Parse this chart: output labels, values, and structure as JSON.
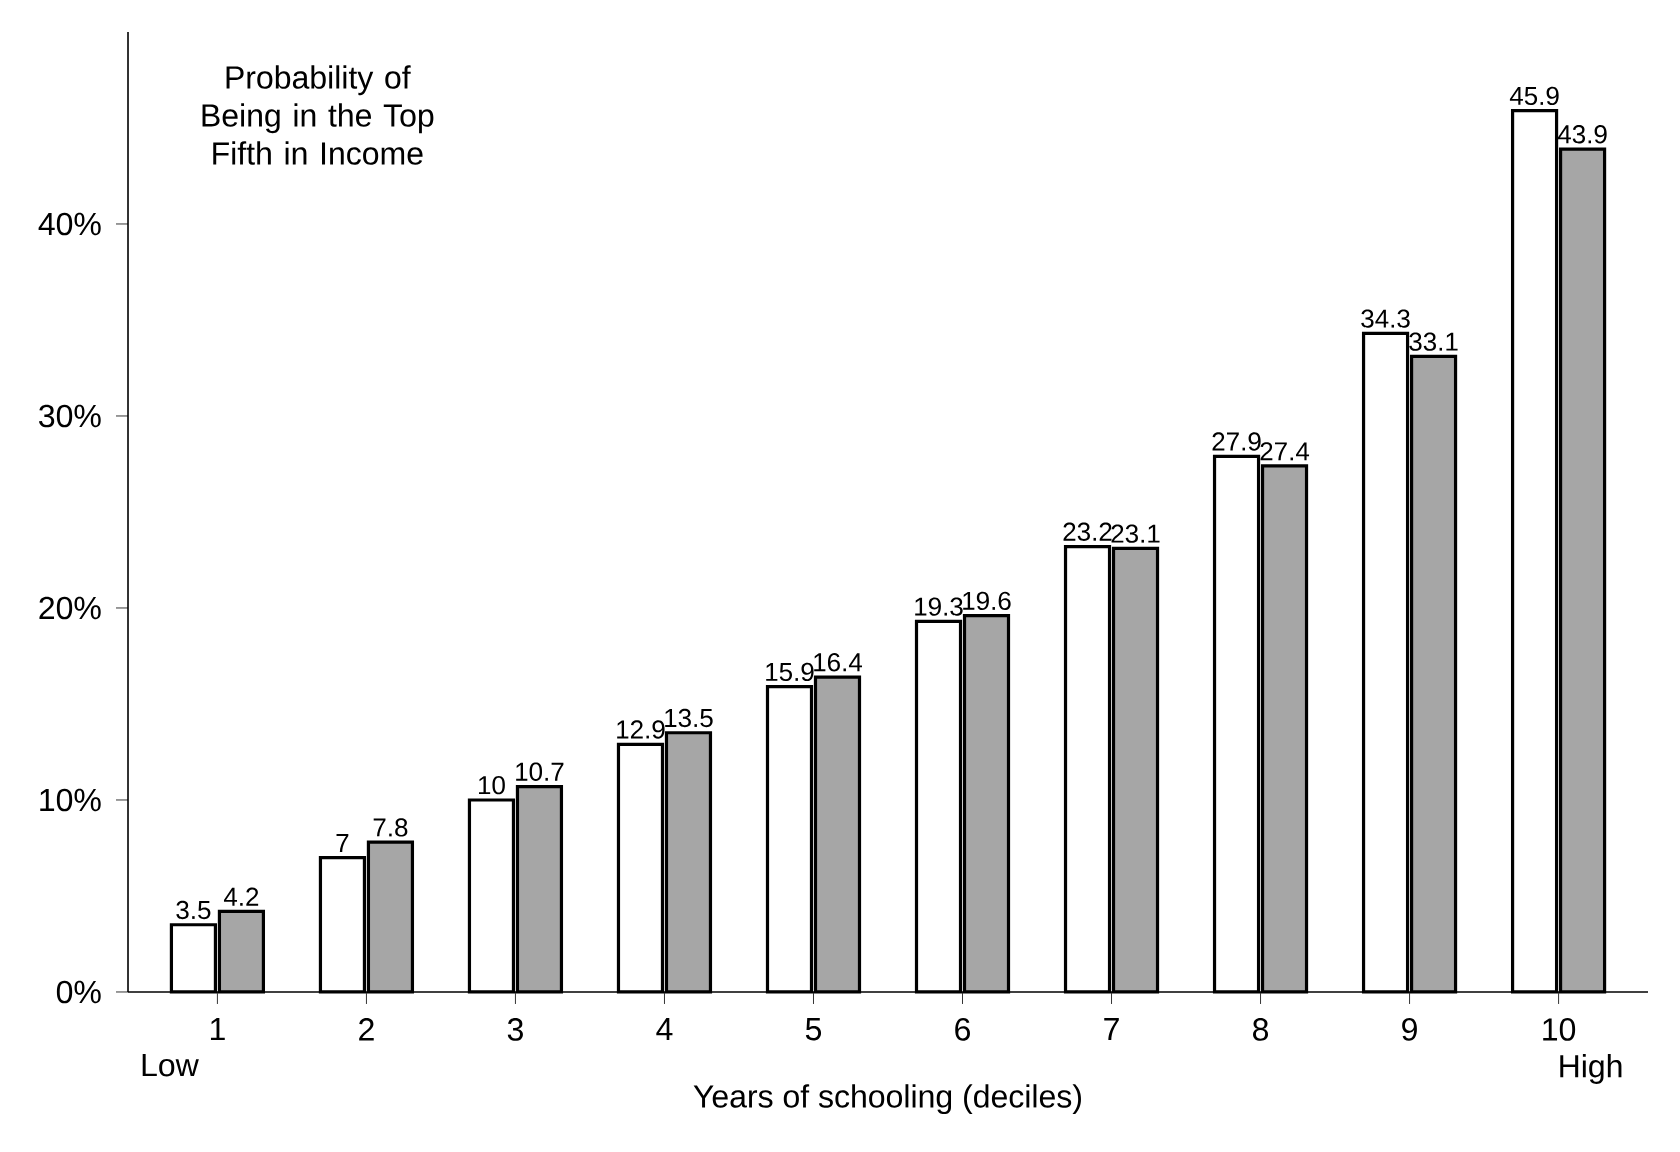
{
  "chart_data": {
    "type": "bar",
    "title": "Probability of Being in the Top Fifth in Income",
    "xlabel": "Years of schooling (deciles)",
    "categories": [
      "1",
      "2",
      "3",
      "4",
      "5",
      "6",
      "7",
      "8",
      "9",
      "10"
    ],
    "series": [
      {
        "color": "#ffffff",
        "values": [
          3.5,
          7,
          10,
          12.9,
          15.9,
          19.3,
          23.2,
          27.9,
          34.3,
          45.9
        ]
      },
      {
        "color": "#a6a6a6",
        "values": [
          4.2,
          7.8,
          10.7,
          13.5,
          16.4,
          19.6,
          23.1,
          27.4,
          33.1,
          43.9
        ]
      }
    ],
    "ylim": [
      0,
      50
    ],
    "yticks": [
      {
        "value": 0,
        "label": "0%"
      },
      {
        "value": 10,
        "label": "10%"
      },
      {
        "value": 20,
        "label": "20%"
      },
      {
        "value": 30,
        "label": "30%"
      },
      {
        "value": 40,
        "label": "40%"
      }
    ],
    "data_labels": true,
    "grid": false,
    "annotations": [
      "Low",
      "High"
    ]
  }
}
